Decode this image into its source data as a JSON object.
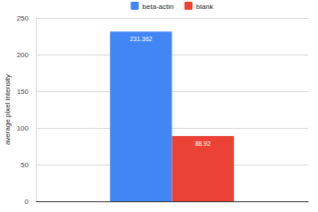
{
  "chart_data": {
    "type": "bar",
    "ylabel": "average pixel intensity",
    "categories": [
      null
    ],
    "series": [
      {
        "name": "beta-actin",
        "color": "#4285f4",
        "values": [
          231.362
        ]
      },
      {
        "name": "blank",
        "color": "#ea4335",
        "values": [
          88.92
        ]
      }
    ],
    "ylim": [
      0,
      250
    ],
    "yticks": [
      0,
      50,
      100,
      150,
      200,
      250
    ],
    "grid": true,
    "legend": "top",
    "data_labels": true
  }
}
